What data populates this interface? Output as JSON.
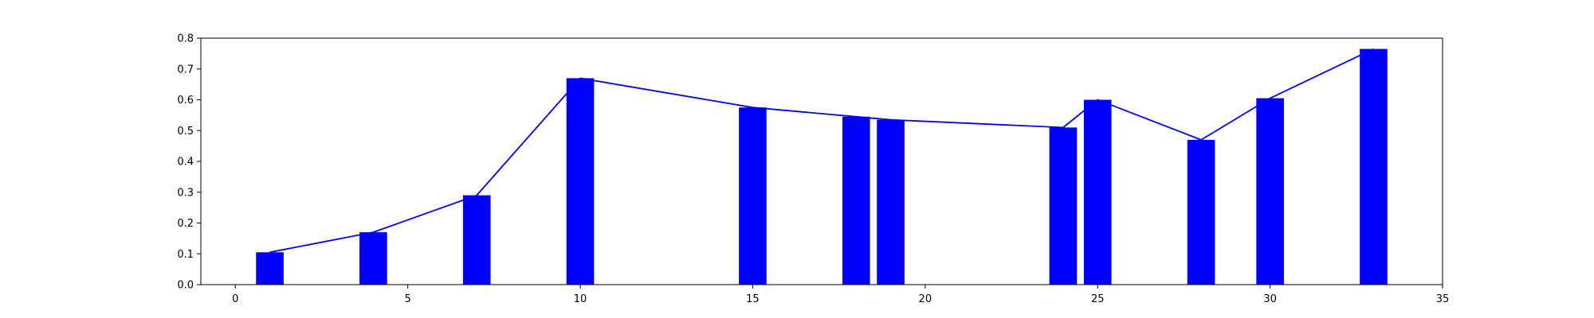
{
  "chart_data": {
    "type": "bar",
    "x": [
      1,
      4,
      7,
      10,
      15,
      18,
      19,
      24,
      25,
      28,
      30,
      33
    ],
    "values": [
      0.105,
      0.17,
      0.29,
      0.67,
      0.575,
      0.545,
      0.535,
      0.51,
      0.6,
      0.47,
      0.605,
      0.765
    ],
    "overlay_line": true,
    "title": "",
    "xlabel": "",
    "ylabel": "",
    "xlim": [
      -1,
      35
    ],
    "ylim": [
      0,
      0.8
    ],
    "x_ticks": [
      0,
      5,
      10,
      15,
      20,
      25,
      30,
      35
    ],
    "y_ticks": [
      0.0,
      0.1,
      0.2,
      0.3,
      0.4,
      0.5,
      0.6,
      0.7,
      0.8
    ],
    "x_tick_labels": [
      "0",
      "5",
      "10",
      "15",
      "20",
      "25",
      "30",
      "35"
    ],
    "y_tick_labels": [
      "0.0",
      "0.1",
      "0.2",
      "0.3",
      "0.4",
      "0.5",
      "0.6",
      "0.7",
      "0.8"
    ],
    "grid": false,
    "legend": "none",
    "colors": {
      "bar": "#0000ff",
      "line": "#0000ff",
      "axes": "#000000",
      "background": "#ffffff"
    }
  }
}
